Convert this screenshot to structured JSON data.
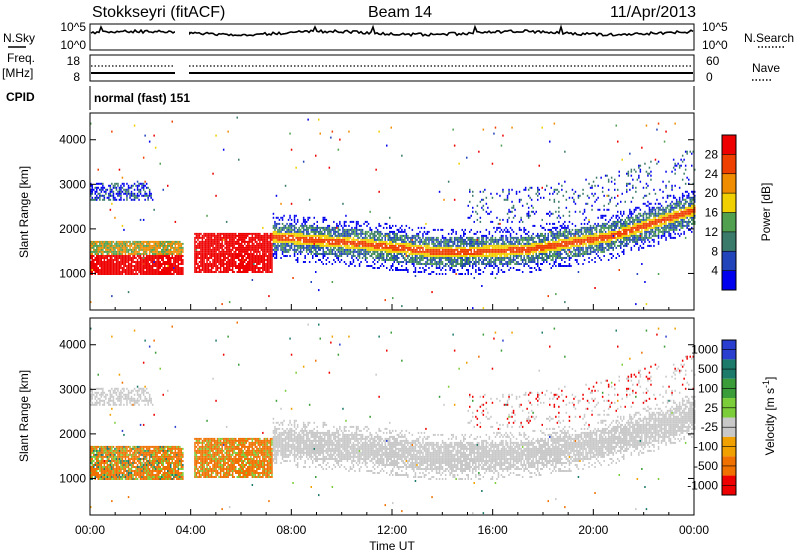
{
  "header": {
    "station": "Stokkseyri (fitACF)",
    "beam": "Beam 14",
    "date": "11/Apr/2013"
  },
  "left_labels": {
    "nsky": "N.Sky",
    "freq": "Freq.",
    "mhz": "[MHz]",
    "cpid": "CPID"
  },
  "right_labels": {
    "nsearch": "N.Search",
    "nave": "Nave"
  },
  "strip_ticks": {
    "noise_left": [
      "10^5",
      "10^0"
    ],
    "noise_right": [
      "10^5",
      "10^0"
    ],
    "freq_left": [
      "18",
      "8"
    ],
    "nave_right": [
      "60",
      "0"
    ]
  },
  "cpid_text": "normal (fast)  151",
  "colors": {
    "power": [
      "#0000ee",
      "#2244bb",
      "#3a7a6a",
      "#50a050",
      "#f0d000",
      "#f08c00",
      "#f04000",
      "#ee0000"
    ],
    "velocity": [
      "#2a3fd0",
      "#1c7a6a",
      "#3a9d3a",
      "#7ccd3a",
      "#c8c8c8",
      "#f0a000",
      "#f07000",
      "#ee0000"
    ]
  },
  "chart_data": [
    {
      "type": "heatmap",
      "title": "Power",
      "xlabel": "Time UT",
      "ylabel": "Slant Range [km]",
      "x_ticks": [
        "00:00",
        "04:00",
        "08:00",
        "12:00",
        "16:00",
        "20:00",
        "00:00"
      ],
      "xlim_hours": [
        0,
        24
      ],
      "ylim": [
        180,
        4600
      ],
      "y_ticks": [
        1000,
        2000,
        3000,
        4000
      ],
      "data_gap_hours": [
        3.7,
        4.1
      ],
      "colorbar_label": "Power [dB]",
      "colorbar_ticks": [
        4,
        8,
        12,
        16,
        20,
        24,
        28
      ],
      "colorbar_range": [
        0,
        32
      ],
      "echo_bands": [
        {
          "hours": [
            0.0,
            3.7
          ],
          "range_km": [
            950,
            1700
          ],
          "level": "high"
        },
        {
          "hours": [
            4.1,
            7.2
          ],
          "range_km": [
            1000,
            1900
          ],
          "level": "high"
        },
        {
          "hours": [
            7.2,
            24.0
          ],
          "center_km": [
            1800,
            1650,
            1450,
            1500,
            1800,
            2400
          ],
          "level": "medium"
        },
        {
          "hours": [
            0.0,
            2.5
          ],
          "range_km": [
            2600,
            3000
          ],
          "level": "low"
        }
      ]
    },
    {
      "type": "heatmap",
      "title": "Velocity",
      "xlabel": "Time UT",
      "ylabel": "Slant Range [km]",
      "x_ticks": [
        "00:00",
        "04:00",
        "08:00",
        "12:00",
        "16:00",
        "20:00",
        "00:00"
      ],
      "xlim_hours": [
        0,
        24
      ],
      "ylim": [
        180,
        4600
      ],
      "y_ticks": [
        1000,
        2000,
        3000,
        4000
      ],
      "colorbar_label": "Velocity [m s^-1]",
      "colorbar_ticks": [
        1000,
        500,
        100,
        25,
        -25,
        -100,
        -500,
        -1000
      ],
      "echo_bands": [
        {
          "hours": [
            0.0,
            3.7
          ],
          "range_km": [
            950,
            1700
          ],
          "level": "negative-moderate"
        },
        {
          "hours": [
            4.1,
            7.2
          ],
          "range_km": [
            1000,
            1900
          ],
          "level": "negative-moderate"
        },
        {
          "hours": [
            7.2,
            24.0
          ],
          "center_km": [
            1800,
            1650,
            1450,
            1500,
            1800,
            2400
          ],
          "level": "ground-scatter"
        }
      ]
    }
  ]
}
